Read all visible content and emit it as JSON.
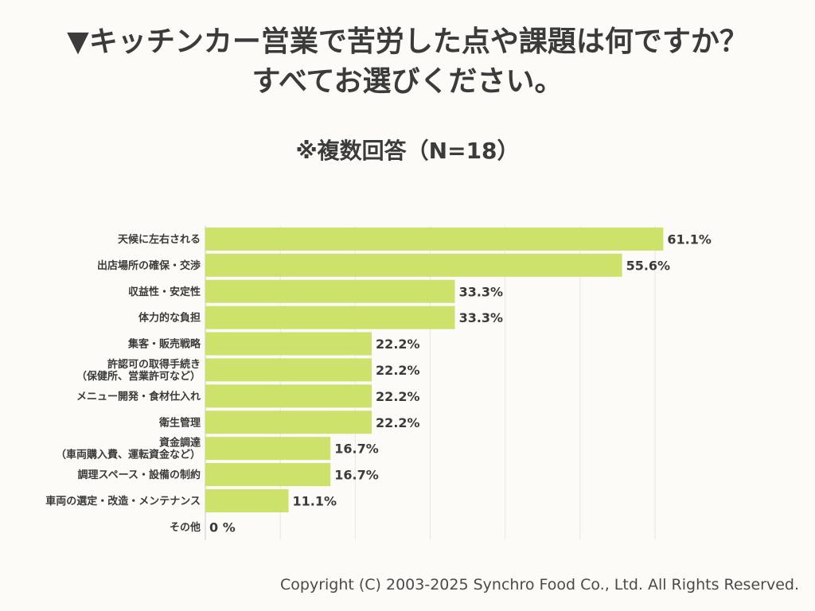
{
  "title_line1": "▼キッチンカー営業で苦労した点や課題は何ですか？",
  "title_line2": "すべてお選びください。",
  "copyright": "Copyright (C) 2003-2025  Synchro Food Co., Ltd. All Rights Reserved.",
  "chart_data": {
    "type": "bar",
    "orientation": "horizontal",
    "title": "※複数回答（N=18）",
    "categories": [
      [
        "天候に左右される"
      ],
      [
        "出店場所の確保・交渉"
      ],
      [
        "収益性・安定性"
      ],
      [
        "体力的な負担"
      ],
      [
        "集客・販売戦略"
      ],
      [
        "許認可の取得手続き",
        "（保健所、営業許可など）"
      ],
      [
        "メニュー開発・食材仕入れ"
      ],
      [
        "衛生管理"
      ],
      [
        "資金調達",
        "（車両購入費、運転資金など）"
      ],
      [
        "調理スペース・設備の制約"
      ],
      [
        "車両の選定・改造・メンテナンス"
      ],
      [
        "その他"
      ]
    ],
    "values": [
      61.1,
      55.6,
      33.3,
      33.3,
      22.2,
      22.2,
      22.2,
      22.2,
      16.7,
      16.7,
      11.1,
      0
    ],
    "value_labels": [
      "61.1%",
      "55.6%",
      "33.3%",
      "33.3%",
      "22.2%",
      "22.2%",
      "22.2%",
      "22.2%",
      "16.7%",
      "16.7%",
      "11.1%",
      "0 %"
    ],
    "xlim": [
      0,
      60
    ],
    "grid": true,
    "bar_color": "#cde26a",
    "grid_color": "#e6e6e6"
  }
}
